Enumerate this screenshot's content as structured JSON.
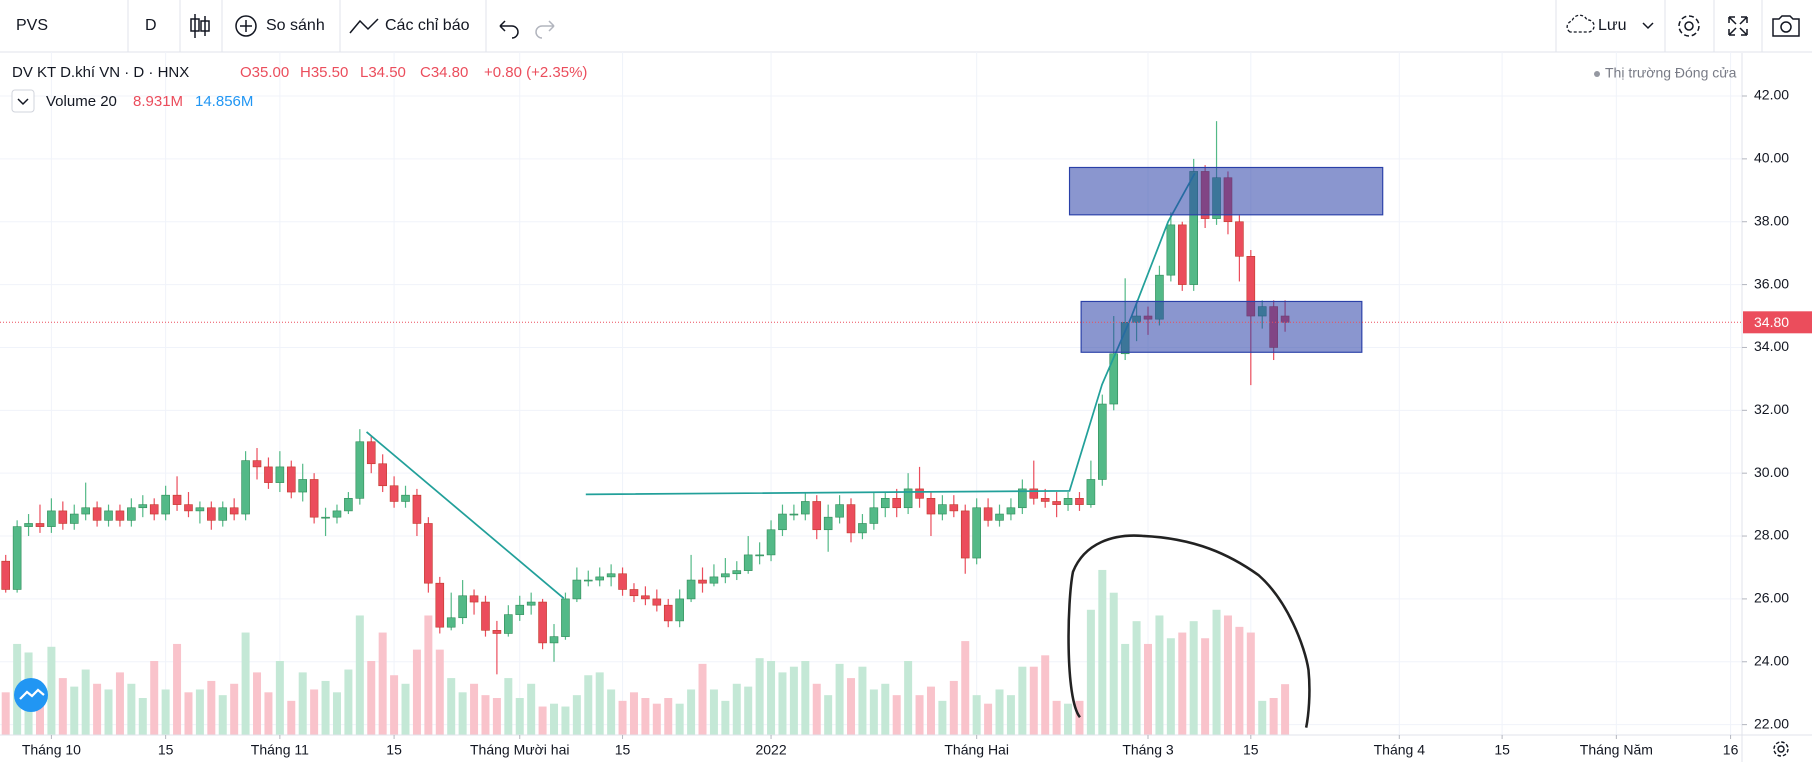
{
  "toolbar": {
    "symbol": "PVS",
    "interval": "D",
    "compare": "So sánh",
    "indicators": "Các chỉ báo",
    "save": "Lưu"
  },
  "legend": {
    "title": "DV KT D.khí VN · D · HNX",
    "ohlc": [
      "O35.00",
      "H35.50",
      "L34.50",
      "C34.80"
    ],
    "change": "+0.80 (+2.35%)",
    "volume_name": "Volume 20",
    "volume_value": "8.931M",
    "volume_ma": "14.856M",
    "market_status": "Thị trường Đóng cửa"
  },
  "chart_data": {
    "type": "candlestick",
    "open": [
      27.2,
      26.3,
      28.3,
      28.4,
      28.3,
      28.8,
      28.4,
      28.7,
      28.9,
      28.5,
      28.8,
      28.5,
      28.9,
      29.0,
      28.7,
      29.3,
      29.0,
      28.8,
      28.9,
      28.5,
      28.9,
      28.7,
      30.4,
      30.2,
      29.7,
      30.2,
      29.4,
      29.8,
      28.6,
      28.6,
      28.8,
      29.2,
      31.0,
      30.3,
      29.6,
      29.1,
      29.3,
      28.4,
      26.5,
      25.1,
      25.4,
      26.1,
      25.9,
      25.0,
      24.9,
      25.5,
      25.8,
      25.9,
      24.6,
      24.8,
      26.0,
      26.6,
      26.6,
      26.7,
      26.8,
      26.3,
      26.1,
      26.0,
      25.8,
      25.3,
      26.0,
      26.6,
      26.5,
      26.7,
      26.8,
      26.9,
      27.4,
      27.4,
      28.2,
      28.7,
      28.7,
      29.1,
      28.2,
      28.6,
      29.0,
      28.1,
      28.4,
      28.9,
      29.2,
      28.9,
      29.5,
      29.2,
      28.7,
      29.0,
      28.8,
      27.3,
      28.9,
      28.5,
      28.7,
      28.9,
      29.5,
      29.2,
      29.1,
      29.0,
      29.2,
      29.0,
      29.8,
      32.2,
      33.8,
      34.8,
      35.0,
      34.9,
      36.3,
      37.9,
      36.0,
      39.6,
      38.1,
      39.4,
      38.0,
      36.9,
      35.0,
      35.3,
      35.0
    ],
    "high": [
      27.4,
      28.5,
      28.7,
      29.0,
      29.2,
      29.1,
      29.0,
      29.7,
      29.1,
      29.0,
      29.0,
      29.2,
      29.3,
      29.2,
      29.6,
      29.9,
      29.4,
      29.1,
      29.1,
      29.1,
      29.2,
      30.7,
      30.8,
      30.5,
      30.7,
      30.4,
      30.3,
      30.0,
      28.9,
      29.0,
      29.4,
      31.4,
      31.2,
      30.6,
      29.9,
      29.6,
      29.5,
      28.6,
      26.7,
      26.2,
      26.6,
      26.3,
      26.1,
      25.3,
      25.8,
      26.1,
      26.2,
      26.0,
      25.2,
      26.2,
      27.0,
      26.9,
      27.0,
      27.1,
      27.0,
      26.5,
      26.4,
      26.3,
      26.0,
      26.3,
      27.4,
      27.0,
      27.1,
      27.3,
      27.2,
      28.0,
      27.8,
      28.5,
      29.0,
      29.0,
      29.4,
      29.3,
      29.0,
      29.3,
      29.2,
      28.7,
      29.4,
      29.4,
      29.5,
      30.0,
      30.2,
      29.4,
      29.3,
      29.3,
      29.0,
      29.2,
      29.2,
      29.0,
      29.2,
      29.8,
      30.4,
      29.5,
      29.4,
      29.4,
      29.4,
      30.4,
      32.5,
      35.0,
      36.2,
      35.5,
      35.3,
      36.6,
      38.3,
      38.0,
      40.0,
      39.8,
      41.2,
      39.6,
      38.2,
      37.1,
      35.5,
      35.5,
      35.5
    ],
    "low": [
      26.2,
      26.2,
      28.0,
      28.1,
      28.1,
      28.2,
      28.2,
      28.5,
      28.3,
      28.3,
      28.3,
      28.3,
      28.6,
      28.5,
      28.5,
      28.8,
      28.6,
      28.4,
      28.2,
      28.3,
      28.5,
      28.5,
      29.8,
      29.5,
      29.4,
      29.2,
      29.1,
      28.4,
      28.0,
      28.4,
      28.7,
      29.0,
      30.0,
      29.4,
      28.9,
      28.9,
      28.0,
      26.2,
      24.9,
      25.0,
      25.2,
      25.5,
      24.8,
      23.6,
      24.8,
      25.3,
      25.5,
      24.4,
      24.0,
      24.7,
      25.9,
      26.4,
      26.4,
      26.4,
      26.1,
      25.9,
      25.8,
      25.6,
      25.1,
      25.1,
      25.9,
      26.2,
      26.4,
      26.5,
      26.6,
      26.8,
      27.1,
      27.2,
      28.0,
      28.5,
      28.5,
      27.9,
      27.5,
      28.4,
      27.8,
      27.9,
      28.2,
      28.6,
      28.6,
      28.7,
      28.9,
      28.0,
      28.5,
      28.6,
      26.8,
      27.1,
      28.3,
      28.3,
      28.5,
      28.7,
      29.0,
      28.9,
      28.6,
      28.8,
      28.8,
      28.9,
      29.6,
      32.0,
      33.6,
      34.2,
      34.4,
      34.7,
      36.1,
      35.8,
      35.8,
      37.8,
      37.9,
      37.6,
      36.1,
      32.8,
      34.6,
      33.6,
      34.5
    ],
    "close": [
      26.3,
      28.3,
      28.4,
      28.3,
      28.8,
      28.4,
      28.7,
      28.9,
      28.5,
      28.8,
      28.5,
      28.9,
      29.0,
      28.7,
      29.3,
      29.0,
      28.8,
      28.9,
      28.5,
      28.9,
      28.7,
      30.4,
      30.2,
      29.7,
      30.2,
      29.4,
      29.8,
      28.6,
      28.6,
      28.8,
      29.2,
      31.0,
      30.3,
      29.6,
      29.1,
      29.3,
      28.4,
      26.5,
      25.1,
      25.4,
      26.1,
      25.9,
      25.0,
      24.9,
      25.5,
      25.8,
      25.9,
      24.6,
      24.8,
      26.0,
      26.6,
      26.6,
      26.7,
      26.8,
      26.3,
      26.1,
      26.0,
      25.8,
      25.3,
      26.0,
      26.6,
      26.5,
      26.7,
      26.8,
      26.9,
      27.4,
      27.4,
      28.2,
      28.7,
      28.7,
      29.1,
      28.2,
      28.6,
      29.0,
      28.1,
      28.4,
      28.9,
      29.2,
      28.9,
      29.5,
      29.2,
      28.7,
      29.0,
      28.8,
      27.3,
      28.9,
      28.5,
      28.7,
      28.9,
      29.5,
      29.2,
      29.1,
      29.0,
      29.2,
      29.0,
      29.8,
      32.2,
      33.8,
      34.8,
      35.0,
      34.9,
      36.3,
      37.9,
      36.0,
      39.6,
      38.1,
      39.4,
      38.0,
      36.9,
      35.0,
      35.3,
      34.0,
      34.8
    ],
    "volume": [
      7.5,
      16,
      14.5,
      9,
      15.5,
      10,
      8.5,
      11.5,
      9,
      8,
      11,
      9,
      6.5,
      13,
      8,
      16,
      7.5,
      8,
      9.5,
      7,
      9,
      18,
      11,
      7.5,
      13,
      6,
      11,
      8,
      9.5,
      7.5,
      11.5,
      21,
      13,
      18,
      10.5,
      9,
      15,
      21,
      15,
      10,
      7.5,
      9,
      7,
      6.5,
      10,
      6.5,
      9,
      5,
      5.5,
      5,
      7,
      10.5,
      11,
      8,
      6,
      7.5,
      6.5,
      5.5,
      6.5,
      5.5,
      8,
      12.5,
      8,
      6,
      9,
      8.5,
      13.5,
      13,
      11,
      12,
      13,
      9,
      7,
      12.5,
      10,
      12,
      8,
      9,
      7,
      13,
      7,
      8.5,
      6,
      9.5,
      16.5,
      7,
      5.5,
      8,
      7,
      12,
      12,
      14,
      6,
      5.5,
      6,
      22,
      29,
      25,
      16,
      20,
      16,
      21,
      17,
      18,
      20,
      17,
      22,
      21,
      19,
      18,
      6,
      6.5,
      8.931
    ],
    "up_color": "#53b987",
    "down_color": "#eb4d5c",
    "volume_up_color": "#c4e8d6",
    "volume_down_color": "#f9c3cb",
    "grid": true,
    "xlim": [
      -0.5,
      152
    ],
    "xticks": [
      {
        "value": 4,
        "label": "Tháng 10"
      },
      {
        "value": 14,
        "label": "15"
      },
      {
        "value": 24,
        "label": "Tháng 11"
      },
      {
        "value": 34,
        "label": "15"
      },
      {
        "value": 45,
        "label": "Tháng Mười hai"
      },
      {
        "value": 54,
        "label": "15"
      },
      {
        "value": 67,
        "label": "2022"
      },
      {
        "value": 85,
        "label": "Tháng Hai"
      },
      {
        "value": 100,
        "label": "Tháng 3"
      },
      {
        "value": 109,
        "label": "15"
      },
      {
        "value": 122,
        "label": "Tháng 4"
      },
      {
        "value": 131,
        "label": "15"
      },
      {
        "value": 141,
        "label": "Tháng Năm"
      },
      {
        "value": 151,
        "label": "16"
      }
    ],
    "ylim": [
      21.67,
      43.4
    ],
    "yticks": [
      {
        "value": 22,
        "label": "22.00"
      },
      {
        "value": 24,
        "label": "24.00"
      },
      {
        "value": 26,
        "label": "26.00"
      },
      {
        "value": 28,
        "label": "28.00"
      },
      {
        "value": 30,
        "label": "30.00"
      },
      {
        "value": 32,
        "label": "32.00"
      },
      {
        "value": 34,
        "label": "34.00"
      },
      {
        "value": 36,
        "label": "36.00"
      },
      {
        "value": 38,
        "label": "38.00"
      },
      {
        "value": 40,
        "label": "40.00"
      },
      {
        "value": 42,
        "label": "42.00"
      }
    ],
    "vlim": [
      0,
      120
    ],
    "last_price": {
      "value": 34.8,
      "label": "34.80"
    }
  }
}
